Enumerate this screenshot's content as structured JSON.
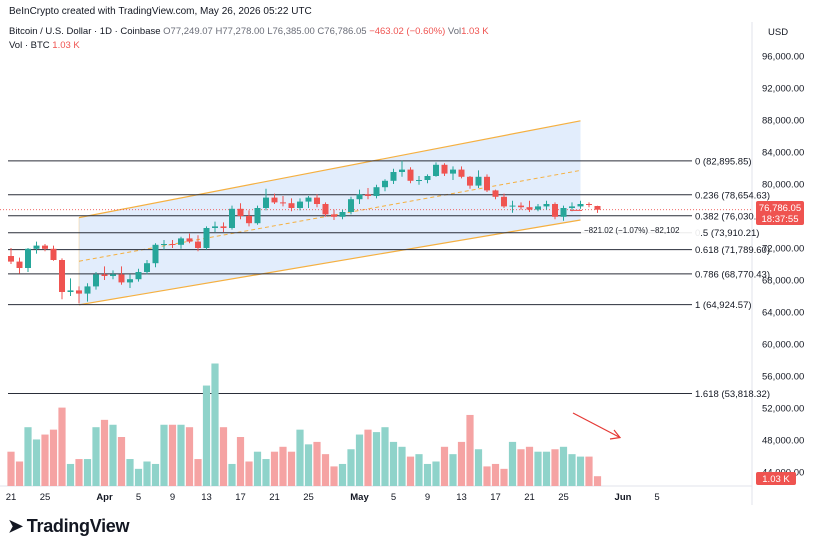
{
  "header": {
    "created_by": "BeInCrypto created with TradingView.com, May 26, 2026 05:22 UTC"
  },
  "legend": {
    "symbol": "Bitcoin / U.S. Dollar · 1D · Coinbase",
    "open": "O77,249.07",
    "high": "H77,278.00",
    "low": "L76,385.00",
    "close": "C76,786.05",
    "change": "−463.02 (−0.60%)",
    "vol_label": "Vol",
    "vol_value": "1.03 K",
    "vol_line_label": "Vol · BTC",
    "vol_line_value": "1.03 K"
  },
  "branding": {
    "logo_text": "TradingView"
  },
  "colors": {
    "up": "#26a69a",
    "down": "#ef5350",
    "vol_up": "#8fd3ca",
    "vol_down": "#f5a3a3",
    "channel_fill": "#dbe8fb",
    "channel_edge": "#f5b041",
    "fib_line": "#2a2e39",
    "arrow": "#e53935"
  },
  "chart_data": {
    "type": "candlestick",
    "currency_label": "USD",
    "ylim": [
      40000,
      100000
    ],
    "y_ticks": [
      "96,000.00",
      "92,000.00",
      "88,000.00",
      "84,000.00",
      "80,000.00",
      "76,000.00",
      "72,000.00",
      "68,000.00",
      "64,000.00",
      "60,000.00",
      "56,000.00",
      "52,000.00",
      "48,000.00",
      "44,000.00"
    ],
    "y_tick_values": [
      96000,
      92000,
      88000,
      84000,
      80000,
      76000,
      72000,
      68000,
      64000,
      60000,
      56000,
      52000,
      48000,
      44000
    ],
    "x_ticks": [
      "21",
      "25",
      "Apr",
      "5",
      "9",
      "13",
      "17",
      "21",
      "25",
      "May",
      "5",
      "9",
      "13",
      "17",
      "21",
      "25",
      "Jun",
      "5"
    ],
    "x_tick_days": [
      0,
      4,
      11,
      15,
      19,
      23,
      27,
      31,
      35,
      41,
      45,
      49,
      53,
      57,
      61,
      65,
      72,
      76
    ],
    "price_label": "76,786.05",
    "time_label": "18:37:55",
    "volume_label": "1.03 K",
    "measure_label": "−821.02 (−1.07%) −82,102",
    "fib_levels": [
      {
        "label": "0 (82,895.85)",
        "value": 82895.85
      },
      {
        "label": "0.236 (78,654.63)",
        "value": 78654.63
      },
      {
        "label": "0.382 (76,030.82)",
        "value": 76030.82
      },
      {
        "label": "0.5 (73,910.21)",
        "value": 73910.21
      },
      {
        "label": "0.618 (71,789.60)",
        "value": 71789.6
      },
      {
        "label": "0.786 (68,770.43)",
        "value": 68770.43
      },
      {
        "label": "1 (64,924.57)",
        "value": 64924.57
      },
      {
        "label": "1.618 (53,818.32)",
        "value": 53818.32
      }
    ],
    "channel": {
      "start_day": 8,
      "end_day": 67,
      "upper": [
        75800,
        87900
      ],
      "lower": [
        64900,
        75500
      ]
    },
    "candles": [
      {
        "o": 71000,
        "h": 72000,
        "l": 70000,
        "c": 70300
      },
      {
        "o": 70300,
        "h": 70800,
        "l": 68800,
        "c": 69500
      },
      {
        "o": 69500,
        "h": 72000,
        "l": 69000,
        "c": 71900
      },
      {
        "o": 71900,
        "h": 72800,
        "l": 71300,
        "c": 72300
      },
      {
        "o": 72300,
        "h": 72500,
        "l": 71600,
        "c": 71900
      },
      {
        "o": 71900,
        "h": 72300,
        "l": 70400,
        "c": 70500
      },
      {
        "o": 70500,
        "h": 70700,
        "l": 65600,
        "c": 66500
      },
      {
        "o": 66500,
        "h": 68200,
        "l": 66000,
        "c": 66700
      },
      {
        "o": 66700,
        "h": 67200,
        "l": 65100,
        "c": 66300
      },
      {
        "o": 66300,
        "h": 67600,
        "l": 65300,
        "c": 67200
      },
      {
        "o": 67200,
        "h": 69000,
        "l": 66800,
        "c": 68700
      },
      {
        "o": 68700,
        "h": 69700,
        "l": 68000,
        "c": 68500
      },
      {
        "o": 68500,
        "h": 69200,
        "l": 68100,
        "c": 68700
      },
      {
        "o": 68700,
        "h": 69700,
        "l": 67400,
        "c": 67700
      },
      {
        "o": 67700,
        "h": 68700,
        "l": 67000,
        "c": 68100
      },
      {
        "o": 68100,
        "h": 69400,
        "l": 67800,
        "c": 69000
      },
      {
        "o": 69000,
        "h": 70500,
        "l": 68700,
        "c": 70100
      },
      {
        "o": 70100,
        "h": 72600,
        "l": 69600,
        "c": 72400
      },
      {
        "o": 72400,
        "h": 73000,
        "l": 71800,
        "c": 72500
      },
      {
        "o": 72500,
        "h": 73000,
        "l": 72000,
        "c": 72400
      },
      {
        "o": 72400,
        "h": 73400,
        "l": 71900,
        "c": 73200
      },
      {
        "o": 73200,
        "h": 73800,
        "l": 72600,
        "c": 72800
      },
      {
        "o": 72800,
        "h": 73600,
        "l": 71600,
        "c": 72000
      },
      {
        "o": 72000,
        "h": 74700,
        "l": 71800,
        "c": 74500
      },
      {
        "o": 74500,
        "h": 75300,
        "l": 74000,
        "c": 74700
      },
      {
        "o": 74700,
        "h": 75200,
        "l": 74000,
        "c": 74500
      },
      {
        "o": 74500,
        "h": 77300,
        "l": 74300,
        "c": 76900
      },
      {
        "o": 76900,
        "h": 77600,
        "l": 75600,
        "c": 76000
      },
      {
        "o": 76000,
        "h": 76700,
        "l": 74700,
        "c": 75100
      },
      {
        "o": 75100,
        "h": 77300,
        "l": 74900,
        "c": 77000
      },
      {
        "o": 77000,
        "h": 79400,
        "l": 76700,
        "c": 78300
      },
      {
        "o": 78300,
        "h": 78800,
        "l": 77500,
        "c": 77700
      },
      {
        "o": 77700,
        "h": 78500,
        "l": 77200,
        "c": 77600
      },
      {
        "o": 77600,
        "h": 78200,
        "l": 76600,
        "c": 77000
      },
      {
        "o": 77000,
        "h": 78200,
        "l": 76700,
        "c": 77800
      },
      {
        "o": 77800,
        "h": 78500,
        "l": 77000,
        "c": 78300
      },
      {
        "o": 78300,
        "h": 78700,
        "l": 77100,
        "c": 77500
      },
      {
        "o": 77500,
        "h": 77700,
        "l": 75900,
        "c": 76200
      },
      {
        "o": 76200,
        "h": 76800,
        "l": 75500,
        "c": 75900
      },
      {
        "o": 75900,
        "h": 76800,
        "l": 75600,
        "c": 76500
      },
      {
        "o": 76500,
        "h": 78400,
        "l": 76200,
        "c": 78100
      },
      {
        "o": 78100,
        "h": 79300,
        "l": 77500,
        "c": 78700
      },
      {
        "o": 78700,
        "h": 79500,
        "l": 78100,
        "c": 78500
      },
      {
        "o": 78500,
        "h": 79900,
        "l": 78200,
        "c": 79600
      },
      {
        "o": 79600,
        "h": 80600,
        "l": 79100,
        "c": 80400
      },
      {
        "o": 80400,
        "h": 81900,
        "l": 80000,
        "c": 81500
      },
      {
        "o": 81500,
        "h": 82900,
        "l": 80900,
        "c": 81800
      },
      {
        "o": 81800,
        "h": 82100,
        "l": 80100,
        "c": 80400
      },
      {
        "o": 80400,
        "h": 81000,
        "l": 79900,
        "c": 80500
      },
      {
        "o": 80500,
        "h": 81200,
        "l": 80100,
        "c": 81000
      },
      {
        "o": 81000,
        "h": 82700,
        "l": 80900,
        "c": 82400
      },
      {
        "o": 82400,
        "h": 82600,
        "l": 81000,
        "c": 81300
      },
      {
        "o": 81300,
        "h": 82200,
        "l": 80500,
        "c": 81800
      },
      {
        "o": 81800,
        "h": 82200,
        "l": 80700,
        "c": 80900
      },
      {
        "o": 80900,
        "h": 81000,
        "l": 79400,
        "c": 79800
      },
      {
        "o": 79800,
        "h": 81700,
        "l": 79500,
        "c": 80900
      },
      {
        "o": 80900,
        "h": 81200,
        "l": 79000,
        "c": 79200
      },
      {
        "o": 79200,
        "h": 79300,
        "l": 78100,
        "c": 78400
      },
      {
        "o": 78400,
        "h": 78800,
        "l": 77000,
        "c": 77200
      },
      {
        "o": 77200,
        "h": 77900,
        "l": 76400,
        "c": 77300
      },
      {
        "o": 77300,
        "h": 77700,
        "l": 76800,
        "c": 77100
      },
      {
        "o": 77100,
        "h": 77900,
        "l": 76500,
        "c": 76800
      },
      {
        "o": 76800,
        "h": 77500,
        "l": 76600,
        "c": 77200
      },
      {
        "o": 77200,
        "h": 77900,
        "l": 76800,
        "c": 77500
      },
      {
        "o": 77500,
        "h": 77700,
        "l": 75600,
        "c": 75900
      },
      {
        "o": 75900,
        "h": 77300,
        "l": 75400,
        "c": 77000
      },
      {
        "o": 77000,
        "h": 77700,
        "l": 76600,
        "c": 77200
      },
      {
        "o": 77200,
        "h": 77900,
        "l": 76900,
        "c": 77500
      },
      {
        "o": 77500,
        "h": 77700,
        "l": 77100,
        "c": 77400
      },
      {
        "o": 77249.07,
        "h": 77278,
        "l": 76385,
        "c": 76786.05
      }
    ],
    "volumes": [
      14,
      10,
      24,
      19,
      21,
      23,
      32,
      9,
      11,
      11,
      24,
      27,
      25,
      20,
      11,
      7,
      10,
      9,
      25,
      25,
      25,
      24,
      11,
      41,
      50,
      24,
      9,
      20,
      10,
      14,
      11,
      14,
      16,
      14,
      23,
      17,
      18,
      13,
      8,
      9,
      15,
      21,
      23,
      22,
      24,
      18,
      16,
      12,
      13,
      9,
      10,
      16,
      13,
      18,
      29,
      15,
      8,
      9,
      7,
      18,
      15,
      16,
      14,
      14,
      15,
      16,
      13,
      12,
      12,
      4
    ]
  }
}
